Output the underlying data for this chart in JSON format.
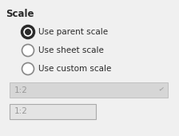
{
  "title": "Scale",
  "title_fontsize": 8.5,
  "radio_options": [
    "Use parent scale",
    "Use sheet scale",
    "Use custom scale"
  ],
  "radio_selected": 0,
  "bg_color": "#f0f0f0",
  "text_color": "#2a2a2a",
  "disabled_color": "#999999",
  "radio_fill": "#ffffff",
  "radio_selected_fill": "#2a2a2a",
  "radio_outer_color": "#888888",
  "dropdown_label": "1:2",
  "dropdown_bg": "#d6d6d6",
  "dropdown_border": "#bbbbbb",
  "textbox_label": "1:2",
  "textbox_bg": "#e4e4e4",
  "textbox_border": "#aaaaaa",
  "label_fontsize": 7.5
}
